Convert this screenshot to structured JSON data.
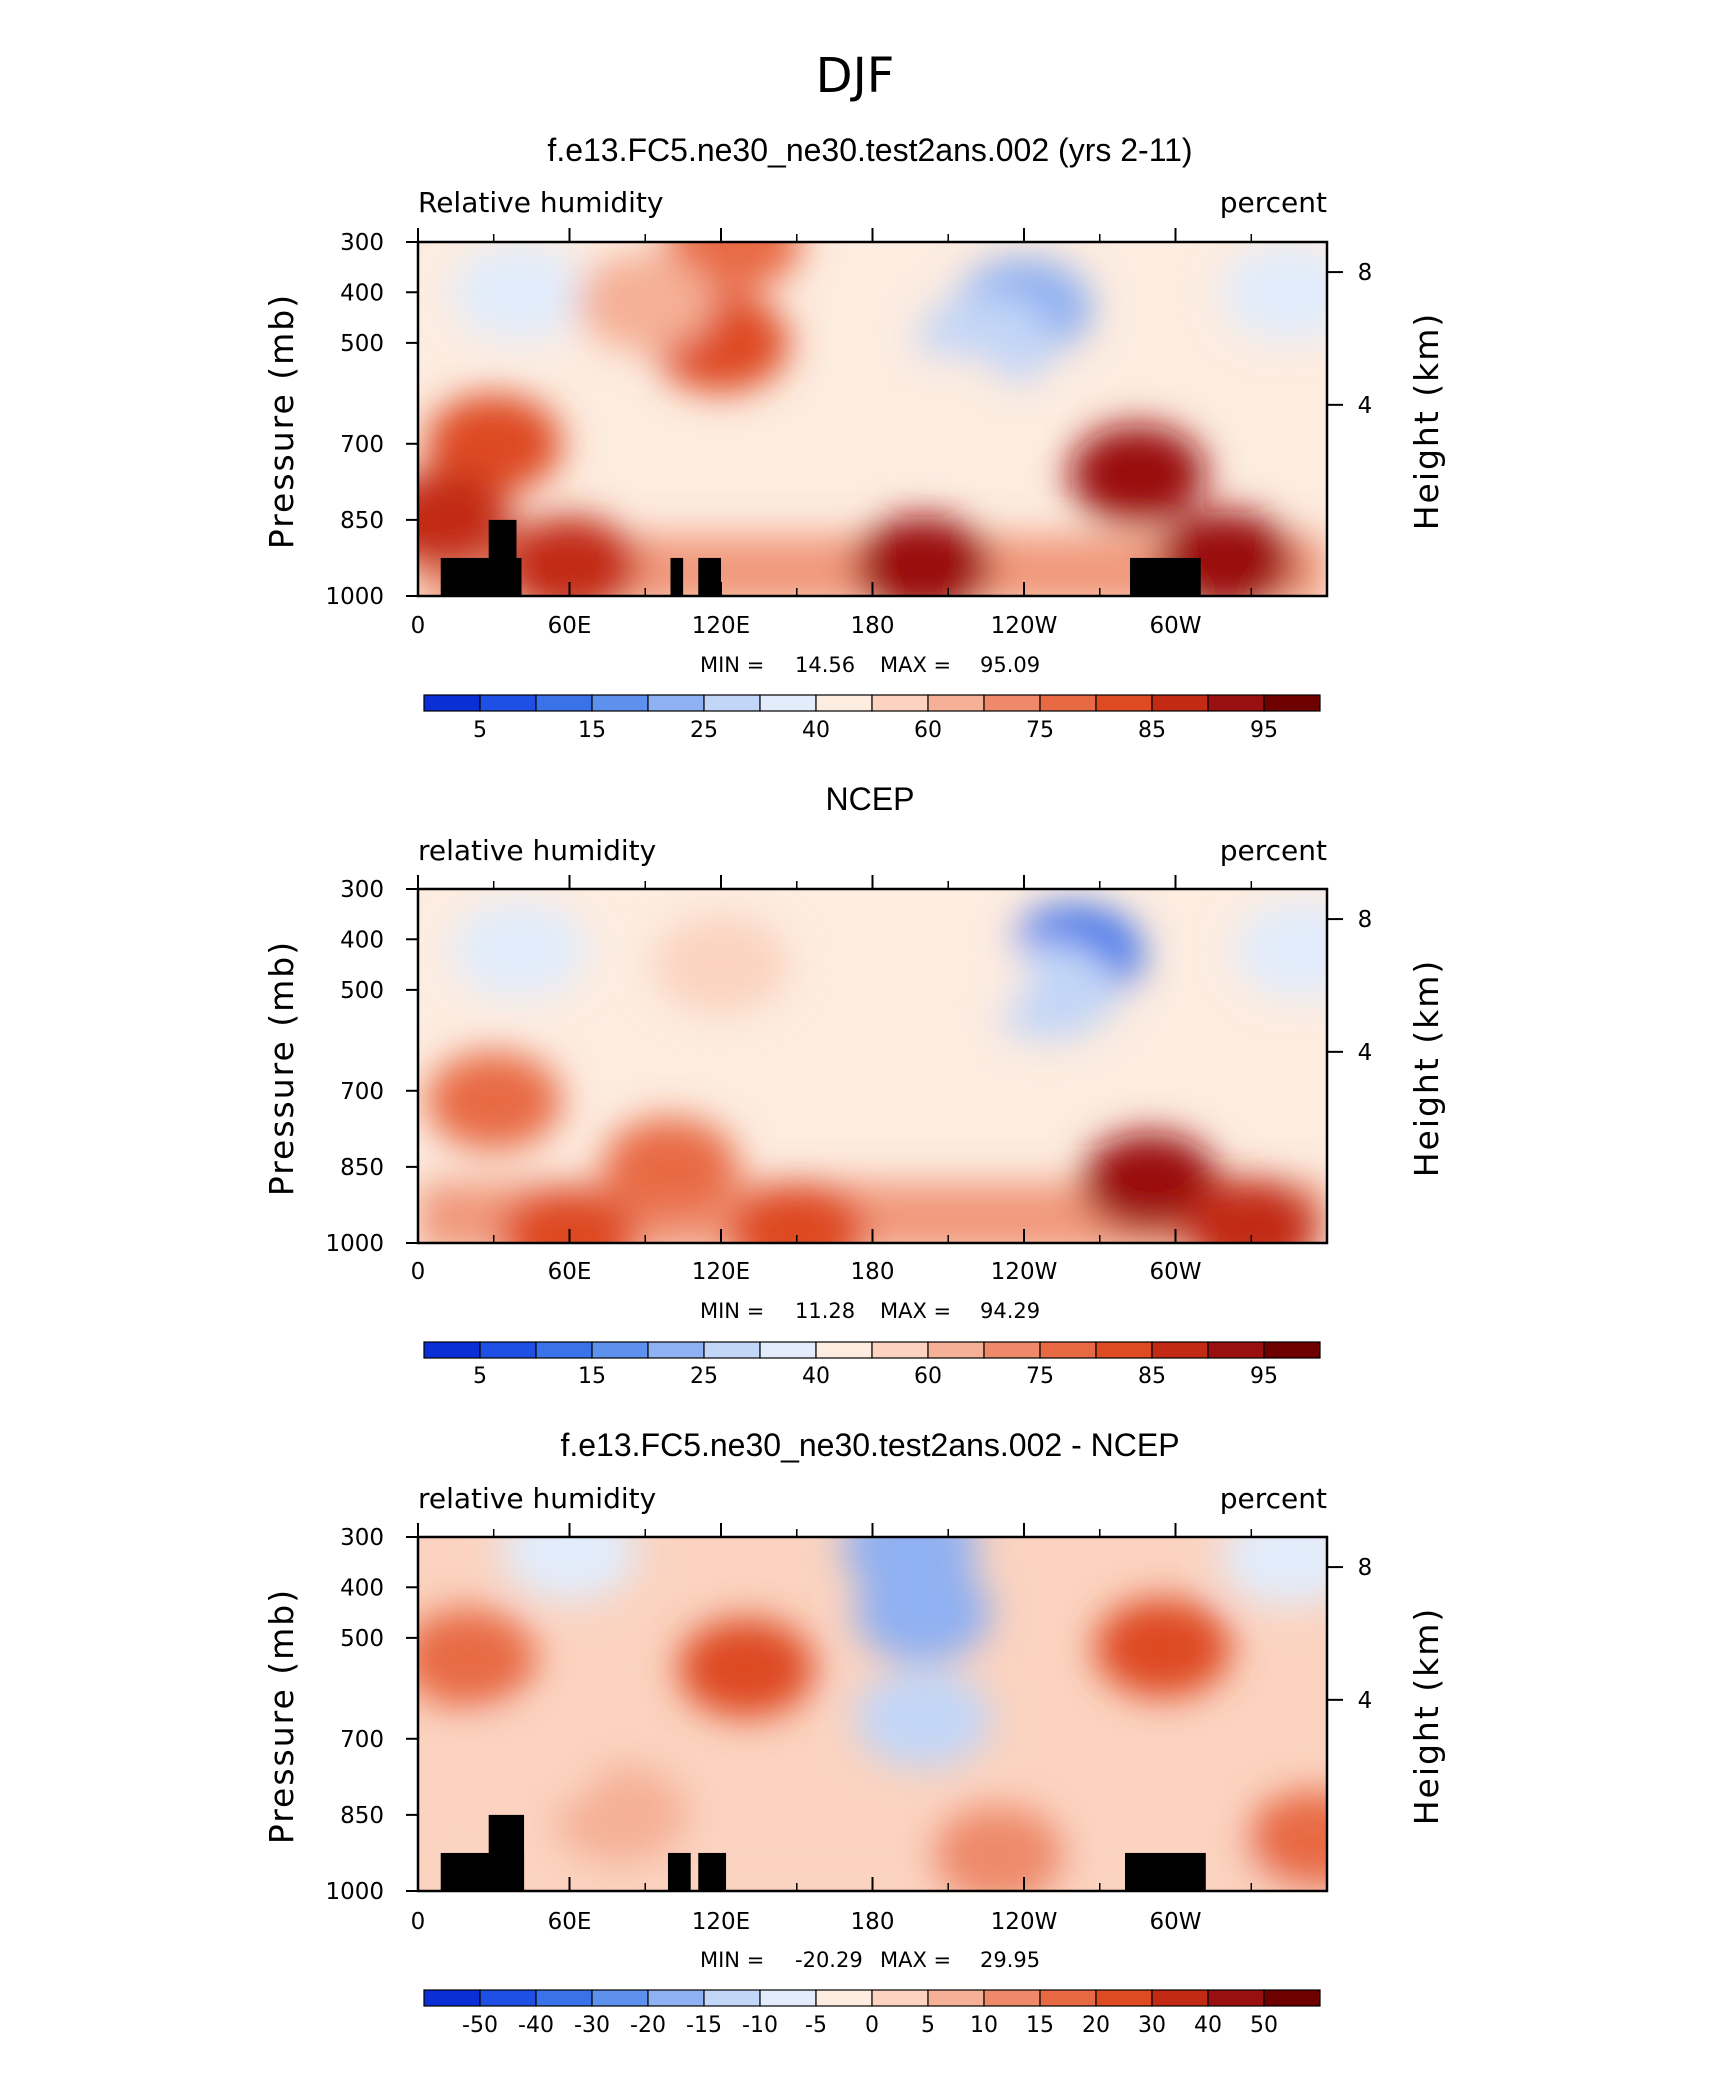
{
  "page_title": "DJF",
  "colors": {
    "rh_palette": [
      "#00008b",
      "#0a2fd6",
      "#1f50e6",
      "#3a72ea",
      "#5e91ee",
      "#8fb0f2",
      "#c2d6f7",
      "#e2ecfb",
      "#fdece0",
      "#fbd3c0",
      "#f5b096",
      "#ee8a6a",
      "#e86a45",
      "#de4a22",
      "#c22a14",
      "#9a1010",
      "#6e0000"
    ],
    "topography": "#000000"
  },
  "chart_data": [
    {
      "type": "heatmap",
      "title": "f.e13.FC5.ne30_ne30.test2ans.002 (yrs 2-11)",
      "left_label": "Relative humidity",
      "right_label": "percent",
      "ylabel": "Pressure (mb)",
      "y2label": "Height (km)",
      "xticks": [
        "0",
        "60E",
        "120E",
        "180",
        "120W",
        "60W"
      ],
      "yticks": [
        "300",
        "400",
        "500",
        "700",
        "850",
        "1000"
      ],
      "y2ticks": [
        "8",
        "4"
      ],
      "min_label": "MIN =",
      "min_value": "14.56",
      "max_label": "MAX =",
      "max_value": "95.09",
      "min": 14.56,
      "max": 95.09,
      "colorbar_labels": [
        "5",
        "15",
        "25",
        "40",
        "60",
        "75",
        "85",
        "95"
      ],
      "blobs": [
        {
          "lon": 40,
          "p": 400,
          "val": 38
        },
        {
          "lon": 345,
          "p": 400,
          "val": 38
        },
        {
          "lon": 240,
          "p": 430,
          "val": 20
        },
        {
          "lon": 225,
          "p": 500,
          "val": 27
        },
        {
          "lon": 210,
          "p": 620,
          "val": 45
        },
        {
          "lon": 120,
          "p": 500,
          "val": 82
        },
        {
          "lon": 125,
          "p": 300,
          "val": 78
        },
        {
          "lon": 285,
          "p": 760,
          "val": 90
        },
        {
          "lon": 200,
          "p": 940,
          "val": 92
        },
        {
          "lon": 60,
          "p": 940,
          "val": 88
        },
        {
          "lon": 320,
          "p": 930,
          "val": 91
        },
        {
          "lon": 30,
          "p": 700,
          "val": 82
        },
        {
          "lon": 10,
          "p": 850,
          "val": 85
        },
        {
          "lon": 90,
          "p": 420,
          "val": 60
        }
      ],
      "topography": [
        {
          "lon0": 9,
          "lon1": 41,
          "ptop": 925
        },
        {
          "lon0": 28,
          "lon1": 39,
          "ptop": 850
        },
        {
          "lon0": 100,
          "lon1": 105,
          "ptop": 925
        },
        {
          "lon0": 111,
          "lon1": 120,
          "ptop": 925
        },
        {
          "lon0": 282,
          "lon1": 310,
          "ptop": 925
        }
      ]
    },
    {
      "type": "heatmap",
      "title": "NCEP",
      "left_label": "relative humidity",
      "right_label": "percent",
      "ylabel": "Pressure (mb)",
      "y2label": "Height (km)",
      "xticks": [
        "0",
        "60E",
        "120E",
        "180",
        "120W",
        "60W"
      ],
      "yticks": [
        "300",
        "400",
        "500",
        "700",
        "850",
        "1000"
      ],
      "y2ticks": [
        "8",
        "4"
      ],
      "min_label": "MIN =",
      "min_value": "11.28",
      "max_label": "MAX =",
      "max_value": "94.29",
      "min": 11.28,
      "max": 94.29,
      "colorbar_labels": [
        "5",
        "15",
        "25",
        "40",
        "60",
        "75",
        "85",
        "95"
      ],
      "blobs": [
        {
          "lon": 40,
          "p": 420,
          "val": 35
        },
        {
          "lon": 350,
          "p": 420,
          "val": 35
        },
        {
          "lon": 260,
          "p": 430,
          "val": 14
        },
        {
          "lon": 250,
          "p": 500,
          "val": 28
        },
        {
          "lon": 215,
          "p": 470,
          "val": 45
        },
        {
          "lon": 120,
          "p": 450,
          "val": 55
        },
        {
          "lon": 150,
          "p": 980,
          "val": 84
        },
        {
          "lon": 290,
          "p": 880,
          "val": 90
        },
        {
          "lon": 60,
          "p": 990,
          "val": 82
        },
        {
          "lon": 330,
          "p": 970,
          "val": 85
        },
        {
          "lon": 30,
          "p": 720,
          "val": 78
        },
        {
          "lon": 100,
          "p": 850,
          "val": 76
        }
      ],
      "topography": []
    },
    {
      "type": "heatmap",
      "title": "f.e13.FC5.ne30_ne30.test2ans.002 - NCEP",
      "left_label": "relative humidity",
      "right_label": "percent",
      "ylabel": "Pressure (mb)",
      "y2label": "Height (km)",
      "xticks": [
        "0",
        "60E",
        "120E",
        "180",
        "120W",
        "60W"
      ],
      "yticks": [
        "300",
        "400",
        "500",
        "700",
        "850",
        "1000"
      ],
      "y2ticks": [
        "8",
        "4"
      ],
      "min_label": "MIN =",
      "min_value": "-20.29",
      "max_label": "MAX =",
      "max_value": "29.95",
      "min": -20.29,
      "max": 29.95,
      "colorbar_labels": [
        "-50",
        "-40",
        "-30",
        "-20",
        "-15",
        "-10",
        "-5",
        "0",
        "5",
        "10",
        "15",
        "20",
        "30",
        "40",
        "50"
      ],
      "blobs": [
        {
          "lon": 200,
          "p": 450,
          "val": -20
        },
        {
          "lon": 195,
          "p": 320,
          "val": -18
        },
        {
          "lon": 200,
          "p": 660,
          "val": -14
        },
        {
          "lon": 60,
          "p": 330,
          "val": -8
        },
        {
          "lon": 345,
          "p": 340,
          "val": -6
        },
        {
          "lon": 130,
          "p": 560,
          "val": 25
        },
        {
          "lon": 295,
          "p": 520,
          "val": 22
        },
        {
          "lon": 20,
          "p": 540,
          "val": 18
        },
        {
          "lon": 355,
          "p": 900,
          "val": 17
        },
        {
          "lon": 230,
          "p": 930,
          "val": 10
        },
        {
          "lon": 80,
          "p": 850,
          "val": 8
        },
        {
          "lon": 45,
          "p": 750,
          "val": 3
        }
      ],
      "topography": [
        {
          "lon0": 9,
          "lon1": 42,
          "ptop": 925
        },
        {
          "lon0": 28,
          "lon1": 42,
          "ptop": 850
        },
        {
          "lon0": 99,
          "lon1": 108,
          "ptop": 925
        },
        {
          "lon0": 111,
          "lon1": 122,
          "ptop": 925
        },
        {
          "lon0": 280,
          "lon1": 312,
          "ptop": 925
        }
      ]
    }
  ]
}
